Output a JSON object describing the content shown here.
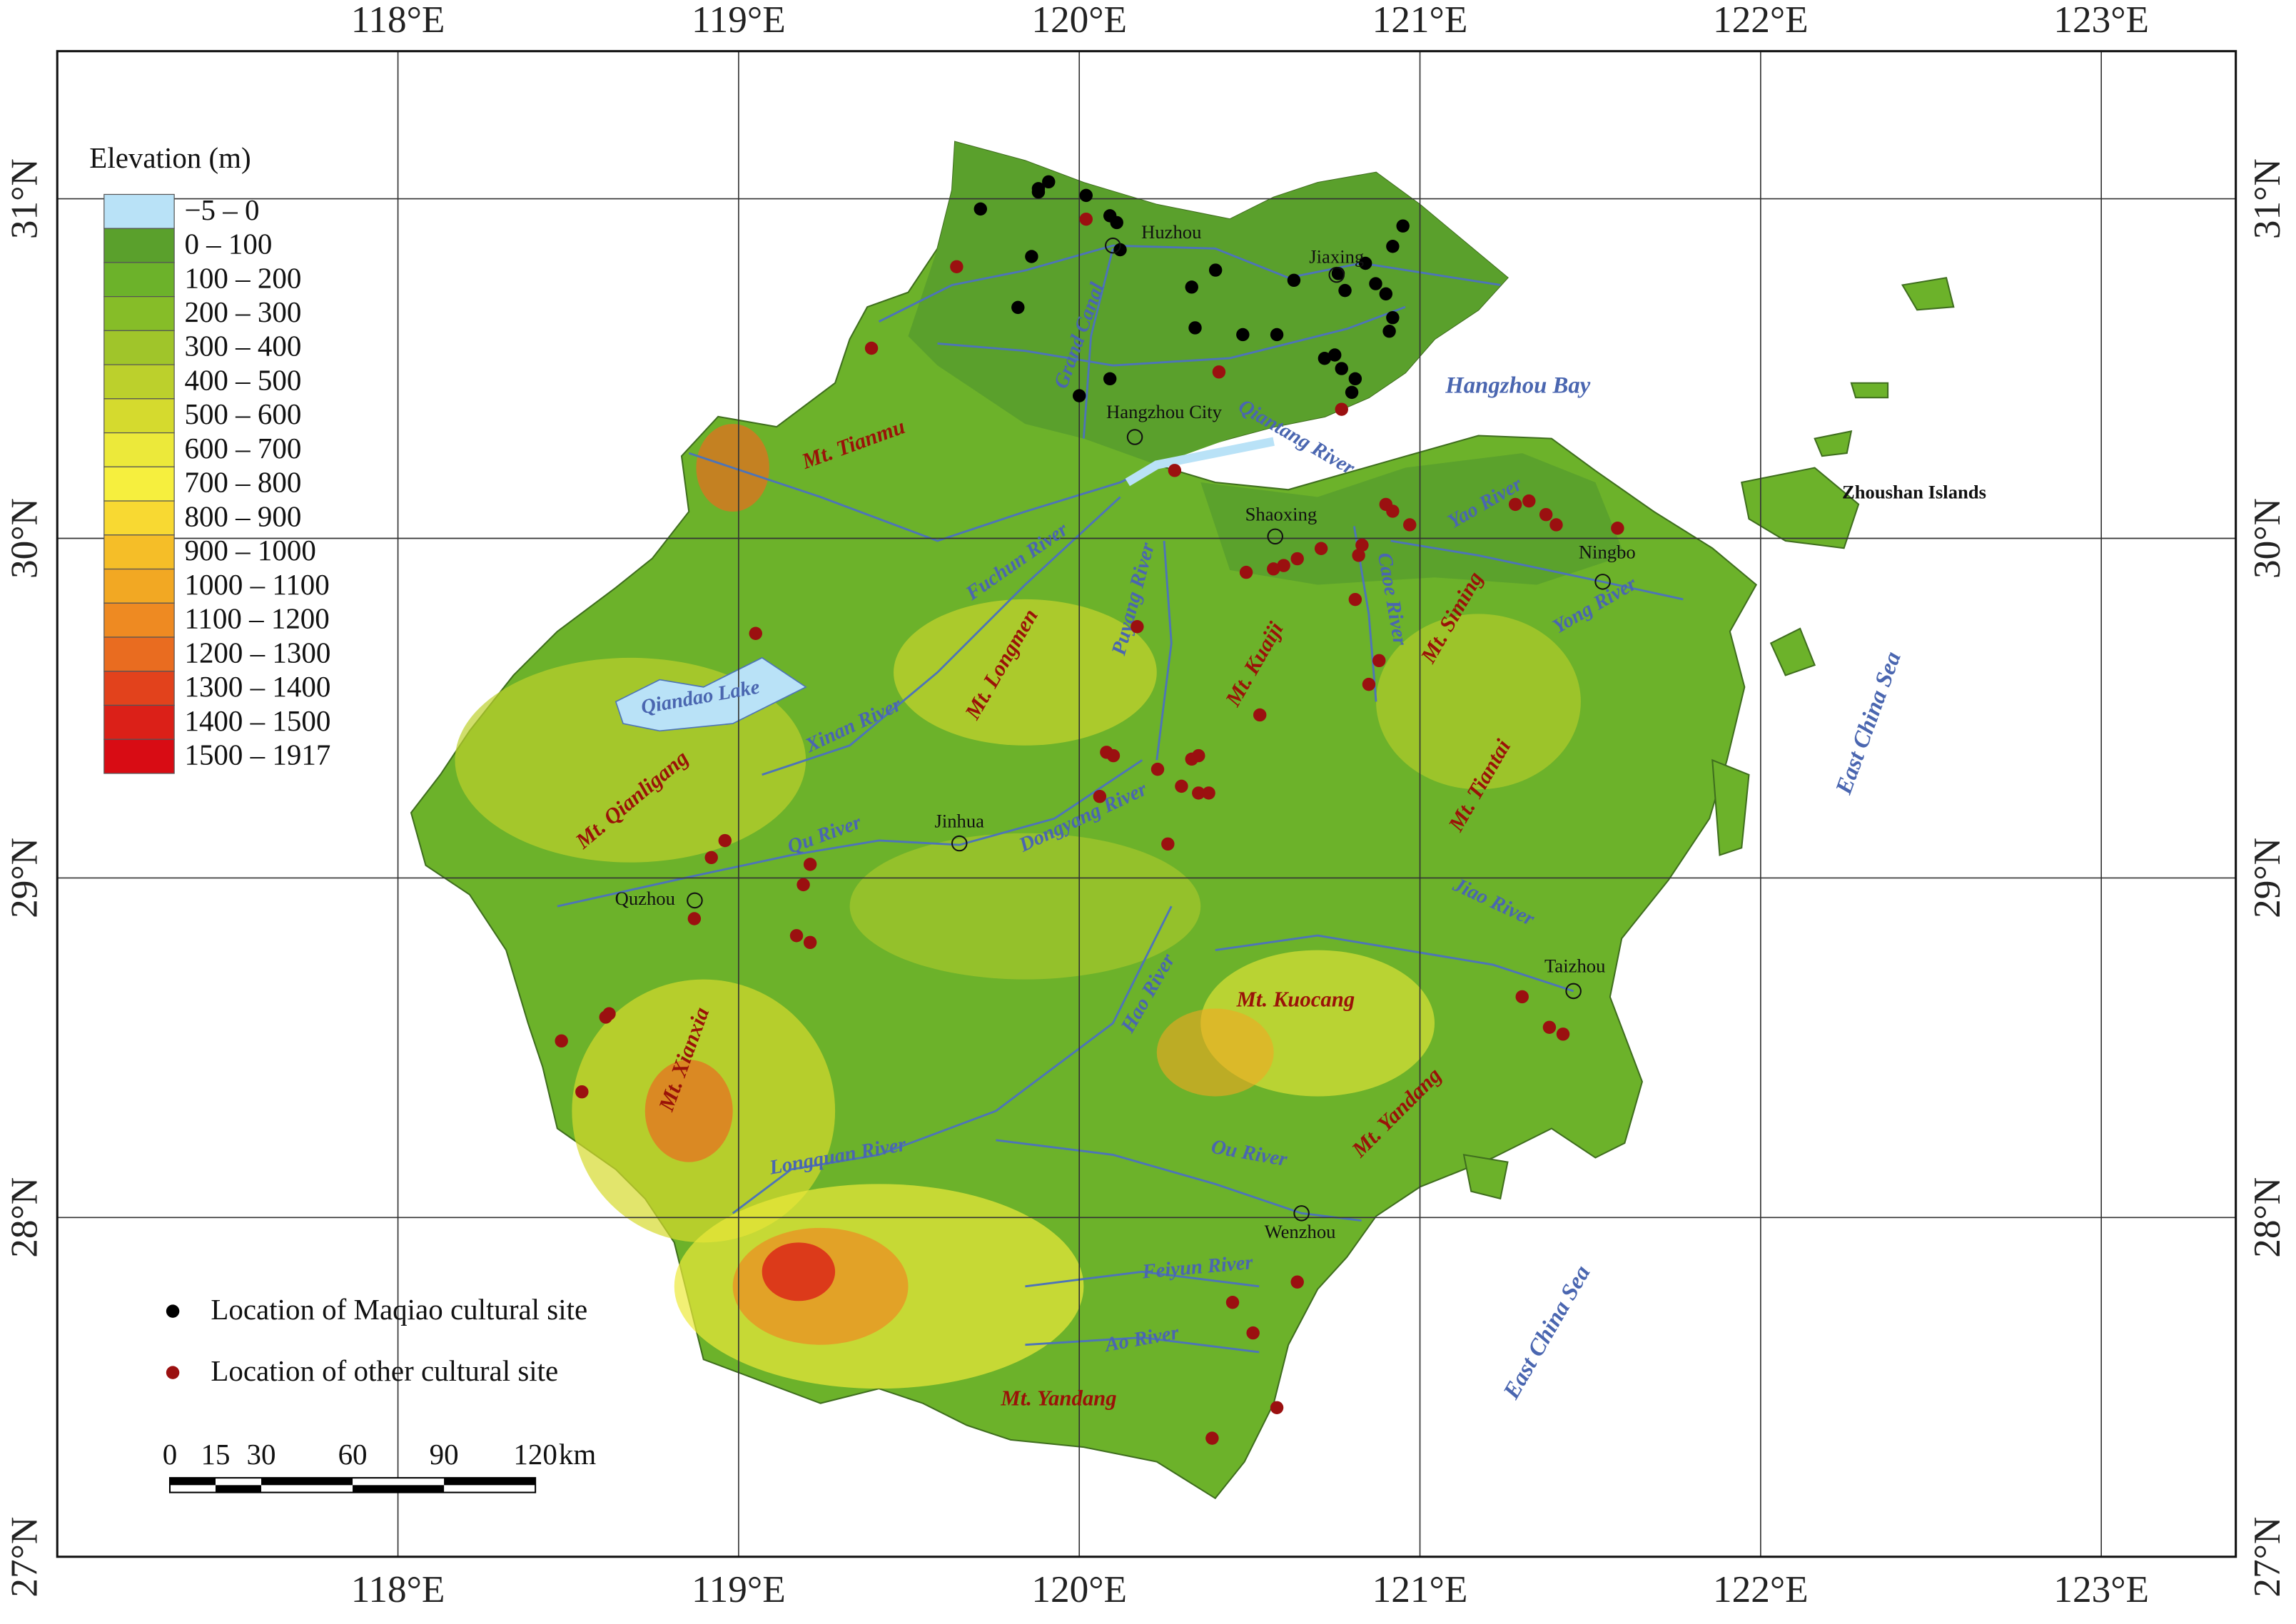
{
  "map": {
    "lon_ticks": [
      {
        "value": 118,
        "label": "118°E"
      },
      {
        "value": 119,
        "label": "119°E"
      },
      {
        "value": 120,
        "label": "120°E"
      },
      {
        "value": 121,
        "label": "121°E"
      },
      {
        "value": 122,
        "label": "122°E"
      },
      {
        "value": 123,
        "label": "123°E"
      }
    ],
    "lat_ticks": [
      {
        "value": 27,
        "label": "27°N"
      },
      {
        "value": 28,
        "label": "28°N"
      },
      {
        "value": 29,
        "label": "29°N"
      },
      {
        "value": 30,
        "label": "30°N"
      },
      {
        "value": 31,
        "label": "31°N"
      }
    ],
    "legend_title": "Elevation (m)",
    "elevation_classes": [
      {
        "label": "−5 – 0",
        "color": "#b9e2f7"
      },
      {
        "label": "0 – 100",
        "color": "#5aa02c"
      },
      {
        "label": "100 – 200",
        "color": "#6cb22a"
      },
      {
        "label": "200 – 300",
        "color": "#86bd28"
      },
      {
        "label": "300 – 400",
        "color": "#a0c52a"
      },
      {
        "label": "400 – 500",
        "color": "#bcd02c"
      },
      {
        "label": "500 – 600",
        "color": "#d5da2e"
      },
      {
        "label": "600 – 700",
        "color": "#ece93a"
      },
      {
        "label": "700 – 800",
        "color": "#f6ef3e"
      },
      {
        "label": "800 – 900",
        "color": "#f8d932"
      },
      {
        "label": "900 – 1000",
        "color": "#f5be28"
      },
      {
        "label": "1000 – 1100",
        "color": "#f2a823"
      },
      {
        "label": "1100 – 1200",
        "color": "#ee8a22"
      },
      {
        "label": "1200 – 1300",
        "color": "#e96c20"
      },
      {
        "label": "1300 – 1400",
        "color": "#e2421c"
      },
      {
        "label": "1400 – 1500",
        "color": "#db2018"
      },
      {
        "label": "1500 – 1917",
        "color": "#d80c14"
      }
    ],
    "cities": [
      "Huzhou",
      "Jiaxing",
      "Hangzhou City",
      "Shaoxing",
      "Ningbo",
      "Jinhua",
      "Quzhou",
      "Taizhou",
      "Wenzhou"
    ],
    "rivers": [
      "Grand Canal",
      "Qiantang River",
      "Fuchun River",
      "Puyang River",
      "Caoe River",
      "Yao River",
      "Yong River",
      "Xinan River",
      "Qu River",
      "Dongyang River",
      "Jiao River",
      "Hao River",
      "Longquan River",
      "Ou River",
      "Feiyun River",
      "Ao River",
      "Qiandao Lake"
    ],
    "mountains": [
      "Mt. Tianmu",
      "Mt. Longmen",
      "Mt. Kuaiji",
      "Mt. Siming",
      "Mt. Qianligang",
      "Mt. Tiantai",
      "Mt. Xianxia",
      "Mt. Kuocang",
      "Mt. Yandang",
      "Mt. Yandang"
    ],
    "seas": [
      "Hangzhou Bay",
      "East China Sea",
      "East China Sea"
    ],
    "islands": "Zhoushan Islands",
    "sites": [
      {
        "legend": "Location of Maqiao cultural site",
        "color": "#000000",
        "lon": [
          119.71,
          119.88,
          119.91,
          119.88,
          120.02,
          120.09,
          120.11,
          119.86,
          120.12,
          119.82,
          120.09,
          120.0,
          120.33,
          120.4,
          120.34,
          120.48,
          120.58,
          120.63,
          120.76,
          120.78,
          120.84,
          120.95,
          120.92,
          120.87,
          120.9,
          120.92,
          120.91,
          120.72,
          120.75,
          120.77,
          120.81,
          120.8
        ],
        "lat": [
          30.97,
          31.03,
          31.05,
          31.02,
          31.01,
          30.95,
          30.93,
          30.83,
          30.85,
          30.68,
          30.47,
          30.42,
          30.74,
          30.79,
          30.62,
          30.6,
          30.6,
          30.76,
          30.78,
          30.73,
          30.81,
          30.92,
          30.86,
          30.75,
          30.72,
          30.65,
          30.61,
          30.53,
          30.54,
          30.5,
          30.47,
          30.43
        ]
      },
      {
        "legend": "Location of other cultural site",
        "color": "#9b1010",
        "lon": [
          119.64,
          120.02,
          119.39,
          120.41,
          120.77,
          120.28,
          120.9,
          120.92,
          120.97,
          121.28,
          121.32,
          121.37,
          121.4,
          121.58,
          120.83,
          120.82,
          120.71,
          120.64,
          120.6,
          120.57,
          120.49,
          120.81,
          120.17,
          119.05,
          120.88,
          120.85,
          120.53,
          120.08,
          120.1,
          120.23,
          120.33,
          120.35,
          120.3,
          120.35,
          120.38,
          120.06,
          120.26,
          118.96,
          118.92,
          119.21,
          119.19,
          118.87,
          119.17,
          119.21,
          118.61,
          118.62,
          118.48,
          118.54,
          121.3,
          121.38,
          121.42,
          120.64,
          120.45,
          120.51,
          120.58,
          120.39
        ],
        "lat": [
          30.8,
          30.94,
          30.56,
          30.49,
          30.38,
          30.2,
          30.1,
          30.08,
          30.04,
          30.1,
          30.11,
          30.07,
          30.04,
          30.03,
          29.98,
          29.95,
          29.97,
          29.94,
          29.92,
          29.91,
          29.9,
          29.82,
          29.74,
          29.72,
          29.64,
          29.57,
          29.48,
          29.37,
          29.36,
          29.32,
          29.35,
          29.36,
          29.27,
          29.25,
          29.25,
          29.24,
          29.1,
          29.11,
          29.06,
          29.04,
          28.98,
          28.88,
          28.83,
          28.81,
          28.59,
          28.6,
          28.52,
          28.37,
          28.65,
          28.56,
          28.54,
          27.81,
          27.75,
          27.66,
          27.44,
          27.35
        ]
      }
    ],
    "scale_bar": {
      "ticks": [
        0,
        15,
        30,
        60,
        90,
        120
      ],
      "unit": "km"
    }
  }
}
